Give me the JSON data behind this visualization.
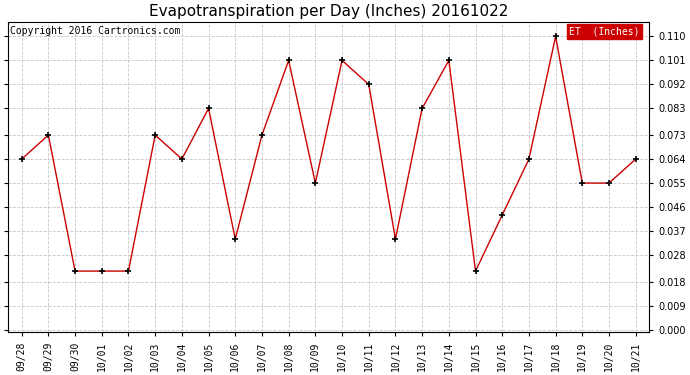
{
  "title": "Evapotranspiration per Day (Inches) 20161022",
  "copyright": "Copyright 2016 Cartronics.com",
  "legend_label": "ET  (Inches)",
  "x_labels": [
    "09/28",
    "09/29",
    "09/30",
    "10/01",
    "10/02",
    "10/03",
    "10/04",
    "10/05",
    "10/06",
    "10/07",
    "10/08",
    "10/09",
    "10/10",
    "10/11",
    "10/12",
    "10/13",
    "10/14",
    "10/15",
    "10/16",
    "10/17",
    "10/18",
    "10/19",
    "10/20",
    "10/21"
  ],
  "y_values": [
    0.064,
    0.073,
    0.022,
    0.022,
    0.022,
    0.073,
    0.064,
    0.083,
    0.034,
    0.073,
    0.101,
    0.055,
    0.101,
    0.092,
    0.034,
    0.083,
    0.101,
    0.022,
    0.043,
    0.064,
    0.11,
    0.055,
    0.055,
    0.064
  ],
  "ylim_min": -0.001,
  "ylim_max": 0.1155,
  "yticks": [
    0.0,
    0.009,
    0.018,
    0.028,
    0.037,
    0.046,
    0.055,
    0.064,
    0.073,
    0.083,
    0.092,
    0.101,
    0.11
  ],
  "line_color": "#cc0000",
  "marker_color": "#000000",
  "bg_color": "#ffffff",
  "grid_color": "#c8c8c8",
  "title_fontsize": 11,
  "copyright_fontsize": 7,
  "legend_bg_color": "#cc0000",
  "legend_text_color": "#ffffff",
  "tick_fontsize": 7,
  "ytick_fontsize": 7
}
